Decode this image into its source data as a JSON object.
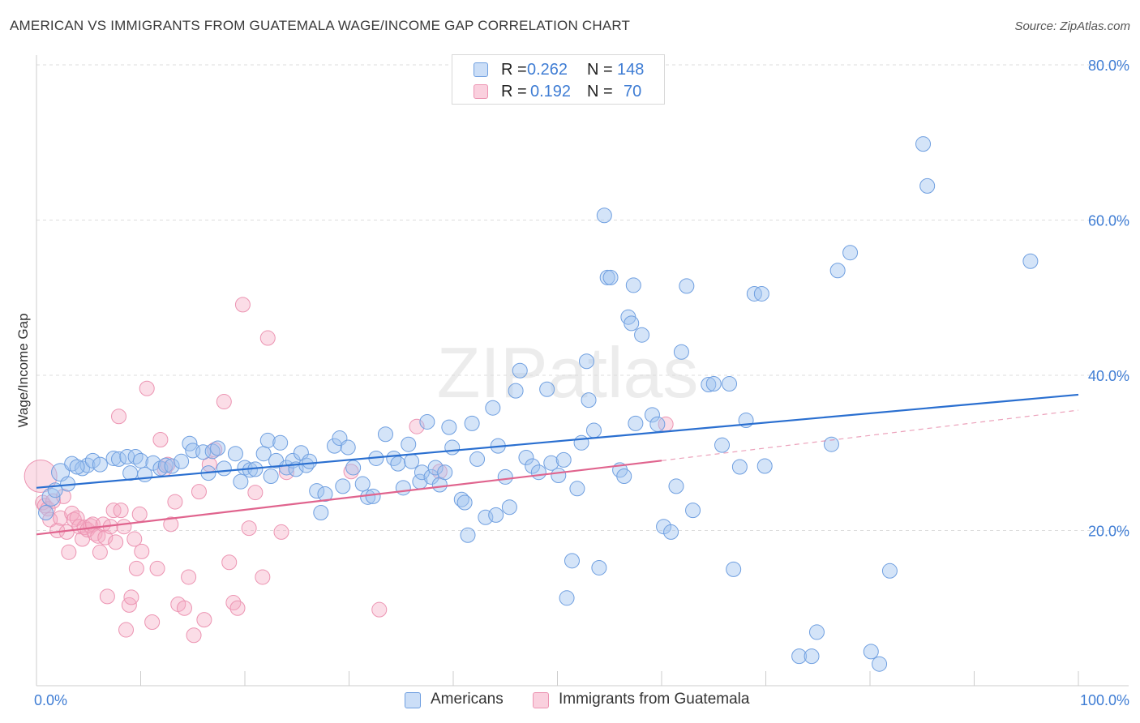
{
  "title": "AMERICAN VS IMMIGRANTS FROM GUATEMALA WAGE/INCOME GAP CORRELATION CHART",
  "source": "Source: ZipAtlas.com",
  "watermark": "ZIPatlas",
  "legend_top": {
    "rows": [
      {
        "r_label": "R =",
        "r_value": "0.262",
        "n_label": "N =",
        "n_value": "148"
      },
      {
        "r_label": "R =",
        "r_value": "0.192",
        "n_label": "N =",
        "n_value": "70"
      }
    ]
  },
  "legend_bottom": {
    "americans": "Americans",
    "guatemala": "Immigrants from Guatemala"
  },
  "colors": {
    "blue_fill": "rgba(160,195,240,0.45)",
    "blue_stroke": "#6f9fe0",
    "blue_line": "#2a6fd0",
    "pink_fill": "rgba(245,170,195,0.40)",
    "pink_stroke": "#ec94b2",
    "pink_line": "#e0648e",
    "axis_text": "#3f7dd4"
  },
  "chart_data": {
    "type": "scatter",
    "title": "AMERICAN VS IMMIGRANTS FROM GUATEMALA WAGE/INCOME GAP CORRELATION CHART",
    "xlabel": "",
    "ylabel": "Wage/Income Gap",
    "xlim": [
      0,
      100
    ],
    "ylim": [
      0,
      80
    ],
    "x_tick_labels": [
      "0.0%",
      "100.0%"
    ],
    "y_ticks": [
      20,
      40,
      60,
      80
    ],
    "y_tick_labels": [
      "20.0%",
      "40.0%",
      "60.0%",
      "80.0%"
    ],
    "grid": true,
    "legend_position": "top-center",
    "series": [
      {
        "name": "Americans",
        "R": 0.262,
        "N": 148,
        "trend": {
          "x": [
            0,
            100
          ],
          "y": [
            25.5,
            37.5
          ]
        },
        "points": [
          [
            0.9,
            22.3
          ],
          [
            1.4,
            24.3
          ],
          [
            1.8,
            25.2
          ],
          [
            2.3,
            27.5
          ],
          [
            3.0,
            26.0
          ],
          [
            3.4,
            28.6
          ],
          [
            4.4,
            28.0
          ],
          [
            4.9,
            28.4
          ],
          [
            5.4,
            29.0
          ],
          [
            3.9,
            28.2
          ],
          [
            6.1,
            28.5
          ],
          [
            7.4,
            29.3
          ],
          [
            7.9,
            29.2
          ],
          [
            8.7,
            29.5
          ],
          [
            9.0,
            27.4
          ],
          [
            9.5,
            29.5
          ],
          [
            10.0,
            29.0
          ],
          [
            10.4,
            27.2
          ],
          [
            11.2,
            28.7
          ],
          [
            11.9,
            28.0
          ],
          [
            12.4,
            28.4
          ],
          [
            13.0,
            28.3
          ],
          [
            13.9,
            28.9
          ],
          [
            14.7,
            31.2
          ],
          [
            15.0,
            30.3
          ],
          [
            16.0,
            30.1
          ],
          [
            16.5,
            27.4
          ],
          [
            16.9,
            30.2
          ],
          [
            17.4,
            30.6
          ],
          [
            18.0,
            28.0
          ],
          [
            19.1,
            29.9
          ],
          [
            19.6,
            26.3
          ],
          [
            20.0,
            28.1
          ],
          [
            20.5,
            27.8
          ],
          [
            21.0,
            27.9
          ],
          [
            21.8,
            29.9
          ],
          [
            22.2,
            31.6
          ],
          [
            22.5,
            27.0
          ],
          [
            23.0,
            29.0
          ],
          [
            23.4,
            31.3
          ],
          [
            24.0,
            28.1
          ],
          [
            24.6,
            29.0
          ],
          [
            24.9,
            27.9
          ],
          [
            25.4,
            30.0
          ],
          [
            25.9,
            28.4
          ],
          [
            26.2,
            28.9
          ],
          [
            26.9,
            25.1
          ],
          [
            27.3,
            22.3
          ],
          [
            27.7,
            24.7
          ],
          [
            28.6,
            30.9
          ],
          [
            29.1,
            31.9
          ],
          [
            29.4,
            25.7
          ],
          [
            29.9,
            30.7
          ],
          [
            30.4,
            28.1
          ],
          [
            31.3,
            26.0
          ],
          [
            31.8,
            24.3
          ],
          [
            32.3,
            24.4
          ],
          [
            32.6,
            29.3
          ],
          [
            33.5,
            32.4
          ],
          [
            34.3,
            29.3
          ],
          [
            34.7,
            28.6
          ],
          [
            35.2,
            25.5
          ],
          [
            35.7,
            31.1
          ],
          [
            36.0,
            28.9
          ],
          [
            36.8,
            26.3
          ],
          [
            37.0,
            27.5
          ],
          [
            37.5,
            34.0
          ],
          [
            37.9,
            26.9
          ],
          [
            38.3,
            28.1
          ],
          [
            38.7,
            25.9
          ],
          [
            39.2,
            27.5
          ],
          [
            39.6,
            33.3
          ],
          [
            39.9,
            30.7
          ],
          [
            40.8,
            24.0
          ],
          [
            41.1,
            23.6
          ],
          [
            41.4,
            19.4
          ],
          [
            41.8,
            33.8
          ],
          [
            42.3,
            29.2
          ],
          [
            43.1,
            21.7
          ],
          [
            43.8,
            35.8
          ],
          [
            44.1,
            22.0
          ],
          [
            44.3,
            30.9
          ],
          [
            45.0,
            26.9
          ],
          [
            45.4,
            23.0
          ],
          [
            46.0,
            38.0
          ],
          [
            46.4,
            40.6
          ],
          [
            47.0,
            29.4
          ],
          [
            47.6,
            28.3
          ],
          [
            48.2,
            27.5
          ],
          [
            49.0,
            38.2
          ],
          [
            49.4,
            28.7
          ],
          [
            50.1,
            27.1
          ],
          [
            50.6,
            29.1
          ],
          [
            50.9,
            11.3
          ],
          [
            51.4,
            16.1
          ],
          [
            51.9,
            25.4
          ],
          [
            52.3,
            31.3
          ],
          [
            52.8,
            41.8
          ],
          [
            53.0,
            36.8
          ],
          [
            53.5,
            32.9
          ],
          [
            54.0,
            15.2
          ],
          [
            54.5,
            60.6
          ],
          [
            54.8,
            52.6
          ],
          [
            55.1,
            52.6
          ],
          [
            56.0,
            27.8
          ],
          [
            56.4,
            27.0
          ],
          [
            56.8,
            47.5
          ],
          [
            57.1,
            46.7
          ],
          [
            57.3,
            51.6
          ],
          [
            57.5,
            33.8
          ],
          [
            58.1,
            45.2
          ],
          [
            59.1,
            34.9
          ],
          [
            59.6,
            33.7
          ],
          [
            60.2,
            20.5
          ],
          [
            60.9,
            19.8
          ],
          [
            61.4,
            25.7
          ],
          [
            61.9,
            43.0
          ],
          [
            62.4,
            51.5
          ],
          [
            63.0,
            22.6
          ],
          [
            64.5,
            38.8
          ],
          [
            65.0,
            38.9
          ],
          [
            65.8,
            31.0
          ],
          [
            66.5,
            38.9
          ],
          [
            66.9,
            15.0
          ],
          [
            67.5,
            28.2
          ],
          [
            68.1,
            34.2
          ],
          [
            68.9,
            50.5
          ],
          [
            69.6,
            50.5
          ],
          [
            69.9,
            28.3
          ],
          [
            73.2,
            3.8
          ],
          [
            74.4,
            3.8
          ],
          [
            74.9,
            6.9
          ],
          [
            76.3,
            31.1
          ],
          [
            76.9,
            53.5
          ],
          [
            78.1,
            55.8
          ],
          [
            80.1,
            4.4
          ],
          [
            80.9,
            2.8
          ],
          [
            81.9,
            14.8
          ],
          [
            85.1,
            69.8
          ],
          [
            85.5,
            64.4
          ],
          [
            95.4,
            54.7
          ]
        ]
      },
      {
        "name": "Immigrants from Guatemala",
        "R": 0.192,
        "N": 70,
        "trend": {
          "x": [
            0,
            60
          ],
          "y": [
            19.5,
            29.0
          ]
        },
        "trend_extension": {
          "x": [
            60,
            100
          ],
          "y": [
            29.0,
            35.5
          ]
        },
        "points": [
          [
            0.4,
            27.0
          ],
          [
            0.6,
            23.6
          ],
          [
            0.8,
            23.2
          ],
          [
            1.1,
            22.8
          ],
          [
            1.3,
            21.4
          ],
          [
            1.6,
            23.8
          ],
          [
            2.0,
            20.0
          ],
          [
            2.3,
            21.6
          ],
          [
            2.6,
            24.4
          ],
          [
            2.9,
            19.8
          ],
          [
            3.1,
            17.2
          ],
          [
            3.4,
            22.2
          ],
          [
            3.6,
            21.4
          ],
          [
            3.9,
            21.6
          ],
          [
            4.1,
            20.5
          ],
          [
            4.4,
            18.9
          ],
          [
            4.6,
            20.4
          ],
          [
            4.9,
            20.1
          ],
          [
            5.2,
            20.6
          ],
          [
            5.4,
            20.8
          ],
          [
            5.6,
            19.6
          ],
          [
            5.9,
            19.3
          ],
          [
            6.1,
            17.2
          ],
          [
            6.4,
            20.8
          ],
          [
            6.6,
            19.1
          ],
          [
            6.8,
            11.5
          ],
          [
            7.1,
            20.5
          ],
          [
            7.4,
            22.6
          ],
          [
            7.6,
            18.5
          ],
          [
            7.9,
            34.7
          ],
          [
            8.1,
            22.6
          ],
          [
            8.4,
            20.5
          ],
          [
            8.6,
            7.2
          ],
          [
            8.9,
            10.4
          ],
          [
            9.1,
            11.4
          ],
          [
            9.4,
            18.9
          ],
          [
            9.6,
            15.1
          ],
          [
            9.9,
            22.1
          ],
          [
            10.1,
            17.3
          ],
          [
            10.6,
            38.3
          ],
          [
            11.1,
            8.2
          ],
          [
            11.6,
            15.1
          ],
          [
            11.9,
            31.7
          ],
          [
            12.3,
            27.9
          ],
          [
            12.6,
            28.5
          ],
          [
            12.9,
            20.8
          ],
          [
            13.3,
            23.7
          ],
          [
            13.6,
            10.5
          ],
          [
            14.2,
            10.0
          ],
          [
            14.6,
            14.0
          ],
          [
            15.1,
            6.5
          ],
          [
            15.6,
            25.0
          ],
          [
            16.1,
            8.5
          ],
          [
            16.6,
            28.5
          ],
          [
            17.1,
            30.4
          ],
          [
            18.0,
            36.6
          ],
          [
            18.5,
            15.9
          ],
          [
            18.9,
            10.7
          ],
          [
            19.3,
            10.0
          ],
          [
            19.8,
            49.1
          ],
          [
            20.4,
            20.3
          ],
          [
            21.0,
            24.9
          ],
          [
            21.7,
            14.0
          ],
          [
            22.2,
            44.8
          ],
          [
            23.5,
            19.8
          ],
          [
            24.0,
            27.5
          ],
          [
            30.2,
            27.6
          ],
          [
            32.9,
            9.8
          ],
          [
            36.5,
            33.4
          ],
          [
            38.7,
            27.6
          ],
          [
            60.4,
            33.7
          ]
        ]
      }
    ]
  }
}
